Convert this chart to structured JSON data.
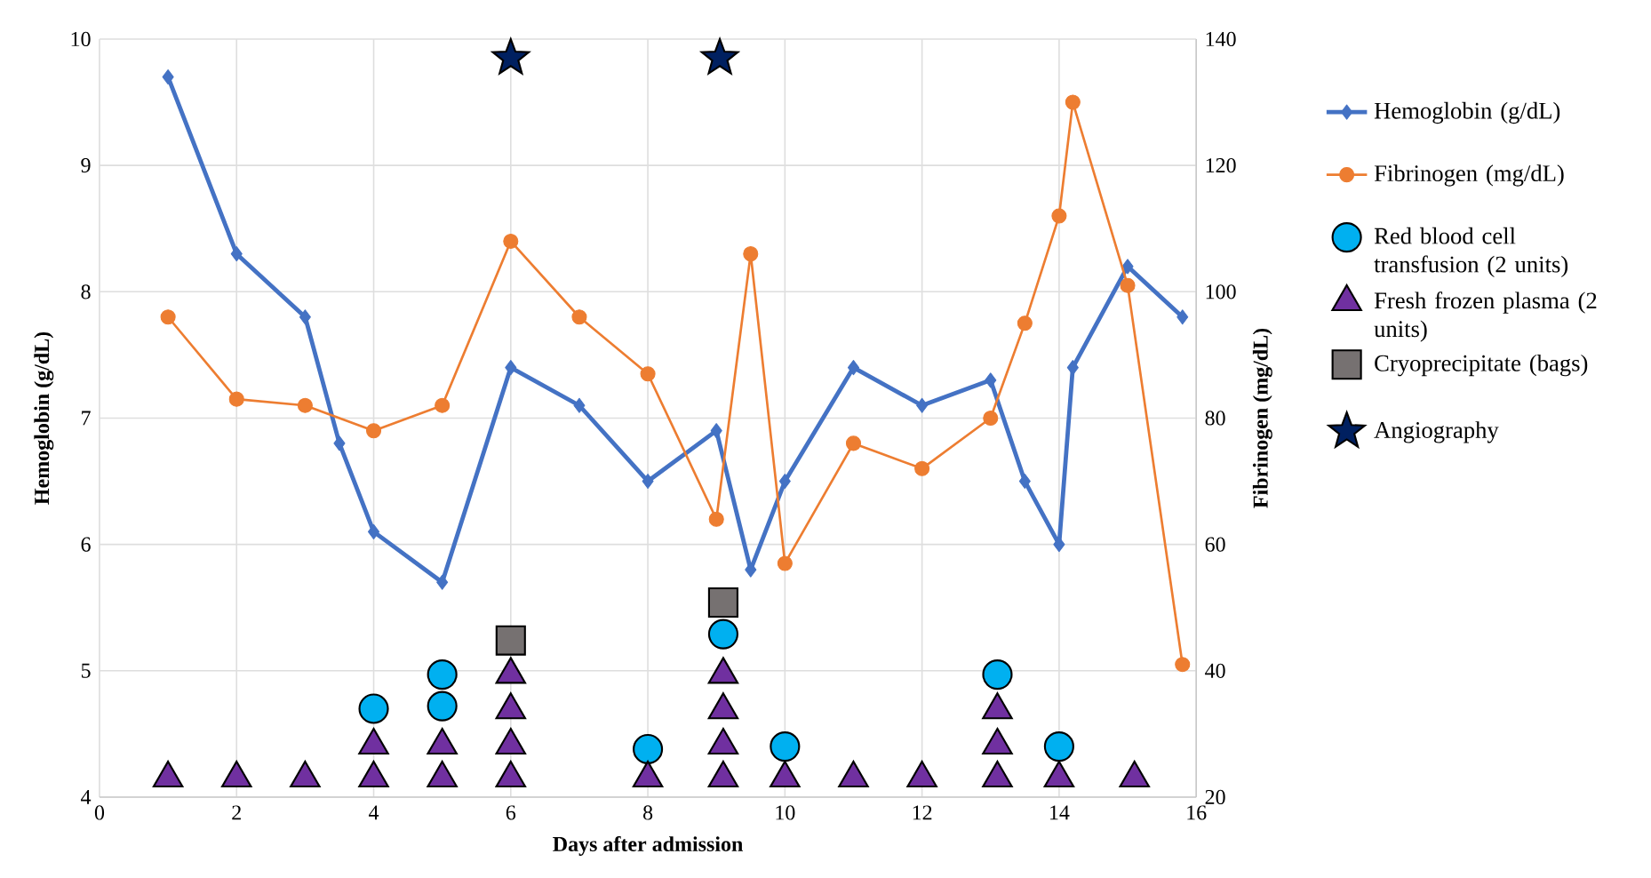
{
  "chart_data": {
    "type": "line",
    "xlabel": "Days after admission",
    "ylabel": "Hemoglobin (g/dL)",
    "y2label": "Fibrinogen (mg/dL)",
    "xlim": [
      0,
      16
    ],
    "xticks": [
      0,
      2,
      4,
      6,
      8,
      10,
      12,
      14,
      16
    ],
    "ylim": [
      4,
      10
    ],
    "yticks": [
      4,
      5,
      6,
      7,
      8,
      9,
      10
    ],
    "y2lim": [
      20,
      140
    ],
    "y2ticks": [
      20,
      40,
      60,
      80,
      100,
      120,
      140
    ],
    "grid": true,
    "legend": "right",
    "line_style": "solid",
    "series": [
      {
        "name": "Hemoglobin (g/dL)",
        "marker": "diamond",
        "color": "#4472c4",
        "x": [
          1,
          2,
          3,
          3.5,
          4,
          5,
          6,
          7,
          8,
          9,
          9.5,
          10,
          11,
          12,
          13,
          13.5,
          14,
          14.2,
          15,
          15.8
        ],
        "values": [
          9.7,
          8.3,
          7.8,
          6.8,
          6.1,
          5.7,
          7.4,
          7.1,
          6.5,
          6.9,
          5.8,
          6.5,
          7.4,
          7.1,
          7.3,
          6.5,
          6.0,
          7.4,
          8.2,
          7.8
        ]
      },
      {
        "name": "Fibrinogen (mg/dL)",
        "axis": "y2",
        "marker": "circle",
        "color": "#ed7d31",
        "x": [
          1,
          2,
          3,
          4,
          5,
          6,
          7,
          8,
          9,
          9.5,
          10,
          11,
          12,
          13,
          13.5,
          14,
          14.2,
          15,
          15.8
        ],
        "values": [
          96,
          83,
          82,
          78,
          82,
          108,
          96,
          87,
          64,
          106,
          57,
          76,
          72,
          80,
          95,
          112,
          130,
          101,
          41
        ]
      },
      {
        "name": "Red blood cell transfusion (2 units)",
        "type": "scatter",
        "marker": "circle",
        "color": "#00b0f0",
        "x": [
          4,
          5,
          5,
          8,
          9.1,
          10,
          13.1,
          14
        ],
        "values": [
          4.7,
          4.72,
          4.97,
          4.38,
          5.29,
          4.4,
          4.97,
          4.4
        ]
      },
      {
        "name": "Fresh frozen plasma (2 units)",
        "type": "scatter",
        "marker": "triangle",
        "color": "#7030a0",
        "x": [
          1,
          2,
          3,
          4,
          4,
          5,
          5,
          6,
          6,
          6,
          6,
          8,
          9.1,
          9.1,
          9.1,
          9.1,
          10,
          11,
          12,
          13.1,
          13.1,
          13.1,
          14,
          15.1
        ],
        "values": [
          4.15,
          4.15,
          4.15,
          4.15,
          4.41,
          4.15,
          4.41,
          4.15,
          4.41,
          4.69,
          4.97,
          4.15,
          4.15,
          4.41,
          4.69,
          4.97,
          4.15,
          4.15,
          4.15,
          4.15,
          4.41,
          4.69,
          4.15,
          4.15
        ]
      },
      {
        "name": "Cryoprecipitate (bags)",
        "type": "scatter",
        "marker": "square",
        "color": "#767171",
        "x": [
          6,
          9.1
        ],
        "values": [
          5.24,
          5.54
        ]
      },
      {
        "name": "Angiography",
        "type": "scatter",
        "marker": "star",
        "color": "#002060",
        "x": [
          6,
          9.05
        ],
        "values": [
          9.85,
          9.85
        ]
      }
    ]
  }
}
